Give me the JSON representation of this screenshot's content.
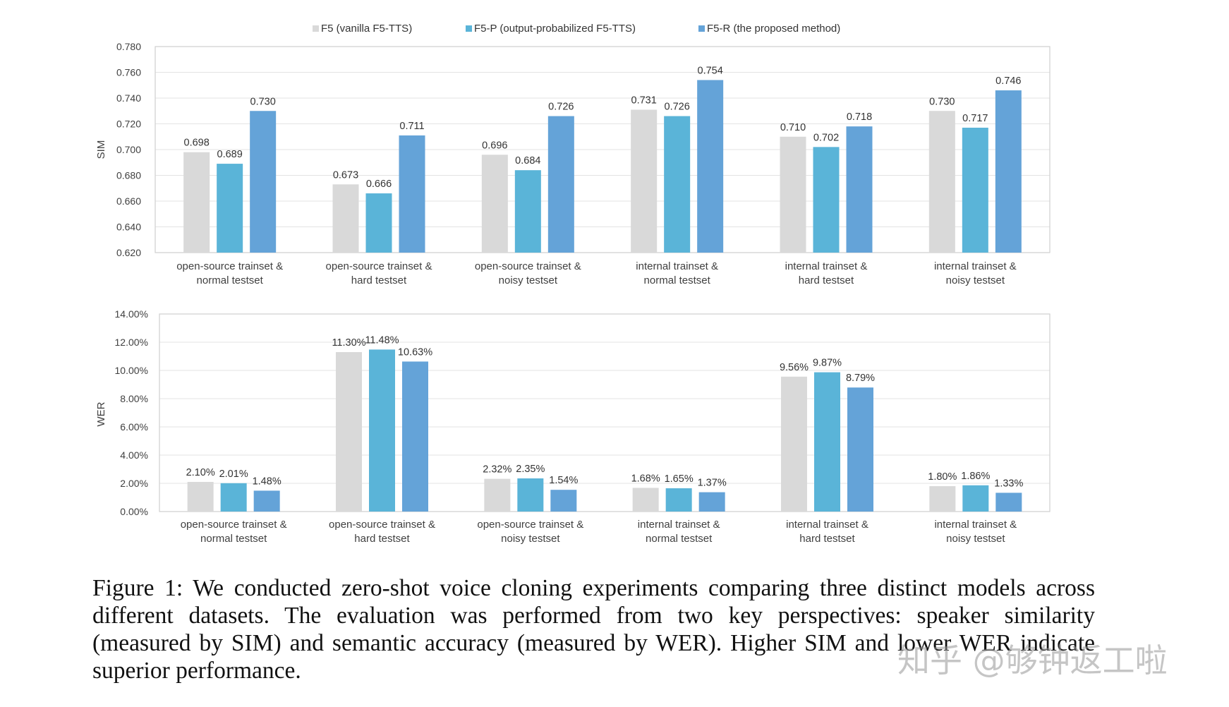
{
  "colors": {
    "F5": "#d9d9d9",
    "F5-P": "#5ab4d8",
    "F5-R": "#64a3d8",
    "grid": "#e3e3e3",
    "frame": "#cfcfcf"
  },
  "legend": [
    {
      "key": "F5",
      "label": "F5 (vanilla F5-TTS)"
    },
    {
      "key": "F5-P",
      "label": "F5-P (output-probabilized F5-TTS)"
    },
    {
      "key": "F5-R",
      "label": "F5-R (the proposed method)"
    }
  ],
  "chart_data": [
    {
      "type": "bar",
      "ylabel": "SIM",
      "ylim": [
        0.62,
        0.78
      ],
      "yticks": [
        "0.620",
        "0.640",
        "0.660",
        "0.680",
        "0.700",
        "0.720",
        "0.740",
        "0.760",
        "0.780"
      ],
      "categories": [
        [
          "open-source trainset &",
          "normal testset"
        ],
        [
          "open-source trainset &",
          "hard testset"
        ],
        [
          "open-source trainset &",
          "noisy testset"
        ],
        [
          "internal trainset &",
          "normal testset"
        ],
        [
          "internal trainset &",
          "hard testset"
        ],
        [
          "internal trainset &",
          "noisy testset"
        ]
      ],
      "series": [
        {
          "name": "F5",
          "values": [
            0.698,
            0.673,
            0.696,
            0.731,
            0.71,
            0.73
          ],
          "labels": [
            "0.698",
            "0.673",
            "0.696",
            "0.731",
            "0.710",
            "0.730"
          ]
        },
        {
          "name": "F5-P",
          "values": [
            0.689,
            0.666,
            0.684,
            0.726,
            0.702,
            0.717
          ],
          "labels": [
            "0.689",
            "0.666",
            "0.684",
            "0.726",
            "0.702",
            "0.717"
          ]
        },
        {
          "name": "F5-R",
          "values": [
            0.73,
            0.711,
            0.726,
            0.754,
            0.718,
            0.746
          ],
          "labels": [
            "0.730",
            "0.711",
            "0.726",
            "0.754",
            "0.718",
            "0.746"
          ]
        }
      ]
    },
    {
      "type": "bar",
      "ylabel": "WER",
      "ylim": [
        0,
        14
      ],
      "yticks": [
        "0.00%",
        "2.00%",
        "4.00%",
        "6.00%",
        "8.00%",
        "10.00%",
        "12.00%",
        "14.00%"
      ],
      "categories": [
        [
          "open-source trainset &",
          "normal testset"
        ],
        [
          "open-source trainset &",
          "hard testset"
        ],
        [
          "open-source trainset &",
          "noisy testset"
        ],
        [
          "internal trainset &",
          "normal testset"
        ],
        [
          "internal trainset &",
          "hard testset"
        ],
        [
          "internal trainset &",
          "noisy testset"
        ]
      ],
      "series": [
        {
          "name": "F5",
          "values": [
            2.1,
            11.3,
            2.32,
            1.68,
            9.56,
            1.8
          ],
          "labels": [
            "2.10%",
            "11.30%",
            "2.32%",
            "1.68%",
            "9.56%",
            "1.80%"
          ]
        },
        {
          "name": "F5-P",
          "values": [
            2.01,
            11.48,
            2.35,
            1.65,
            9.87,
            1.86
          ],
          "labels": [
            "2.01%",
            "11.48%",
            "2.35%",
            "1.65%",
            "9.87%",
            "1.86%"
          ]
        },
        {
          "name": "F5-R",
          "values": [
            1.48,
            10.63,
            1.54,
            1.37,
            8.79,
            1.33
          ],
          "labels": [
            "1.48%",
            "10.63%",
            "1.54%",
            "1.37%",
            "8.79%",
            "1.33%"
          ]
        }
      ]
    }
  ],
  "caption": "Figure 1: We conducted zero-shot voice cloning experiments comparing three distinct models across different datasets. The evaluation was performed from two key perspectives: speaker similarity (measured by SIM) and semantic accuracy (measured by WER). Higher SIM and lower WER indicate superior performance.",
  "watermark": "知乎 @够钟返工啦"
}
